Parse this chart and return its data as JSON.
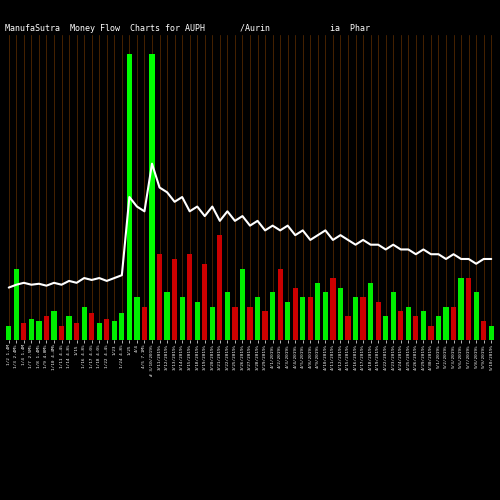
{
  "title": "ManufaSutra  Money Flow  Charts for AUPH       /Aurin            ia  Phar",
  "bg_color": "#000000",
  "bar_color_pos": "#00ee00",
  "bar_color_neg": "#cc0000",
  "line_color": "#ffffff",
  "highlight_color": "#00ff00",
  "orange_grid": "#7a3a00",
  "figsize": [
    5.0,
    5.0
  ],
  "dpi": 100,
  "dates": [
    "1/2 1.4M",
    "1/3 2.4M%",
    "1/4 1.4M",
    "1/7 2.5M%",
    "1/8 1.4M%",
    "1/9 4.0M%",
    "1/10 4.4M%",
    "1/11 4.4%",
    "1/14 4.8%",
    "1/15",
    "1/16 4.8%",
    "1/17 4.0%",
    "1/18 4.0%",
    "1/22 4.4%",
    "1/23",
    "1/24 4.8%",
    "1/25",
    "4/4",
    "4/5 7.1M%",
    "# 3/10/2019%",
    "3/11/2019%",
    "3/12/2019%",
    "3/13/2019%",
    "3/14/2019%",
    "3/15/2019%",
    "3/18/2019%",
    "3/19/2019%",
    "3/20/2019%",
    "3/21/2019%",
    "3/22/2019%",
    "3/25/2019%",
    "3/26/2019%",
    "3/27/2019%",
    "3/28/2019%",
    "3/29/2019%",
    "4/1/2019%",
    "4/2/2019%",
    "4/3/2019%",
    "4/4/2019%",
    "4/5/2019%",
    "4/8/2019%",
    "4/9/2019%",
    "4/10/2019%",
    "4/11/2019%",
    "4/12/2019%",
    "4/15/2019%",
    "4/16/2019%",
    "4/17/2019%",
    "4/18/2019%",
    "4/19/2019%",
    "4/22/2019%",
    "4/23/2019%",
    "4/24/2019%",
    "4/25/2019%",
    "4/26/2019%",
    "4/29/2019%",
    "4/30/2019%",
    "5/1/2019%",
    "5/2/2019%",
    "5/3/2019%",
    "5/6/2019%",
    "5/7/2019%",
    "5/8/2019%",
    "5/9/2019%",
    "5/10/2019%"
  ],
  "bar_heights": [
    1.5,
    7.5,
    1.8,
    2.2,
    2.0,
    2.5,
    3.0,
    1.5,
    2.5,
    1.8,
    3.5,
    2.8,
    1.8,
    2.2,
    2.0,
    2.8,
    30.0,
    4.5,
    3.5,
    30.0,
    9.0,
    5.0,
    8.5,
    4.5,
    9.0,
    4.0,
    8.0,
    3.5,
    11.0,
    5.0,
    3.5,
    7.5,
    3.5,
    4.5,
    3.0,
    5.0,
    7.5,
    4.0,
    5.5,
    4.5,
    4.5,
    6.0,
    5.0,
    6.5,
    5.5,
    2.5,
    4.5,
    4.5,
    6.0,
    4.0,
    2.5,
    5.0,
    3.0,
    3.5,
    2.5,
    3.0,
    1.5,
    2.5,
    3.5,
    3.5,
    6.5,
    6.5,
    5.0,
    2.0,
    1.5
  ],
  "bar_colors_list": [
    "g",
    "g",
    "r",
    "g",
    "g",
    "r",
    "g",
    "r",
    "g",
    "r",
    "g",
    "r",
    "g",
    "r",
    "g",
    "g",
    "g",
    "g",
    "r",
    "g",
    "r",
    "g",
    "r",
    "g",
    "r",
    "g",
    "r",
    "g",
    "r",
    "g",
    "r",
    "g",
    "r",
    "g",
    "r",
    "g",
    "r",
    "g",
    "r",
    "g",
    "r",
    "g",
    "g",
    "r",
    "g",
    "r",
    "g",
    "r",
    "g",
    "r",
    "g",
    "g",
    "r",
    "g",
    "r",
    "g",
    "r",
    "g",
    "g",
    "r",
    "g",
    "r",
    "g",
    "r",
    "g"
  ],
  "line_values": [
    5.5,
    5.8,
    6.0,
    5.8,
    5.9,
    5.7,
    6.0,
    5.8,
    6.2,
    6.0,
    6.5,
    6.3,
    6.5,
    6.2,
    6.5,
    6.8,
    15.0,
    14.0,
    13.5,
    18.5,
    16.0,
    15.5,
    14.5,
    15.0,
    13.5,
    14.0,
    13.0,
    14.0,
    12.5,
    13.5,
    12.5,
    13.0,
    12.0,
    12.5,
    11.5,
    12.0,
    11.5,
    12.0,
    11.0,
    11.5,
    10.5,
    11.0,
    11.5,
    10.5,
    11.0,
    10.5,
    10.0,
    10.5,
    10.0,
    10.0,
    9.5,
    10.0,
    9.5,
    9.5,
    9.0,
    9.5,
    9.0,
    9.0,
    8.5,
    9.0,
    8.5,
    8.5,
    8.0,
    8.5,
    8.5
  ],
  "highlight_bars": [
    16,
    19
  ],
  "ylim": [
    0,
    32
  ],
  "line_ylim_max": 32,
  "title_fontsize": 6.0,
  "tick_fontsize": 3.2
}
